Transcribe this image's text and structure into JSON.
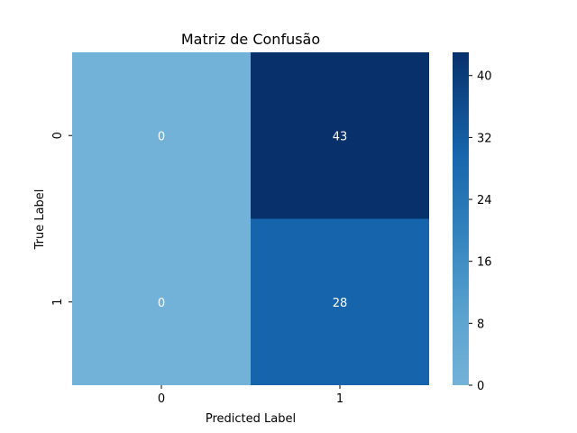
{
  "chart_data": {
    "type": "heatmap",
    "title": "Matriz de Confusão",
    "xlabel": "Predicted Label",
    "ylabel": "True Label",
    "x_categories": [
      "0",
      "1"
    ],
    "y_categories": [
      "0",
      "1"
    ],
    "values": [
      [
        0,
        43
      ],
      [
        0,
        28
      ]
    ],
    "colorbar": {
      "ticks": [
        0,
        8,
        16,
        24,
        32,
        40
      ],
      "range": [
        0,
        43
      ],
      "colormap": "Blues",
      "low_color": "#73b2d8",
      "high_color": "#08306b"
    }
  }
}
